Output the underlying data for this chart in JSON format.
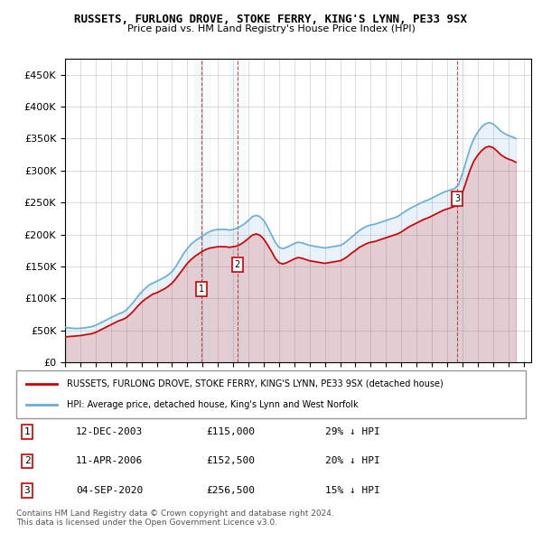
{
  "title": "RUSSETS, FURLONG DROVE, STOKE FERRY, KING'S LYNN, PE33 9SX",
  "subtitle": "Price paid vs. HM Land Registry's House Price Index (HPI)",
  "ylabel_ticks": [
    "£0",
    "£50K",
    "£100K",
    "£150K",
    "£200K",
    "£250K",
    "£300K",
    "£350K",
    "£400K",
    "£450K"
  ],
  "ytick_values": [
    0,
    50000,
    100000,
    150000,
    200000,
    250000,
    300000,
    350000,
    400000,
    450000
  ],
  "xlim_start": 1995.0,
  "xlim_end": 2025.5,
  "ylim": [
    0,
    475000
  ],
  "hpi_color": "#6baed6",
  "price_color": "#cc0000",
  "transactions": [
    {
      "date": 2003.95,
      "price": 115000,
      "label": "1"
    },
    {
      "date": 2006.28,
      "price": 152500,
      "label": "2"
    },
    {
      "date": 2020.67,
      "price": 256500,
      "label": "3"
    }
  ],
  "transaction_dates_detail": [
    "12-DEC-2003",
    "11-APR-2006",
    "04-SEP-2020"
  ],
  "transaction_prices_detail": [
    "£115,000",
    "£152,500",
    "£256,500"
  ],
  "transaction_hpi_detail": [
    "29% ↓ HPI",
    "20% ↓ HPI",
    "15% ↓ HPI"
  ],
  "legend_label_price": "RUSSETS, FURLONG DROVE, STOKE FERRY, KING'S LYNN, PE33 9SX (detached house)",
  "legend_label_hpi": "HPI: Average price, detached house, King's Lynn and West Norfolk",
  "footer": "Contains HM Land Registry data © Crown copyright and database right 2024.\nThis data is licensed under the Open Government Licence v3.0.",
  "hpi_data_x": [
    1995.0,
    1995.25,
    1995.5,
    1995.75,
    1996.0,
    1996.25,
    1996.5,
    1996.75,
    1997.0,
    1997.25,
    1997.5,
    1997.75,
    1998.0,
    1998.25,
    1998.5,
    1998.75,
    1999.0,
    1999.25,
    1999.5,
    1999.75,
    2000.0,
    2000.25,
    2000.5,
    2000.75,
    2001.0,
    2001.25,
    2001.5,
    2001.75,
    2002.0,
    2002.25,
    2002.5,
    2002.75,
    2003.0,
    2003.25,
    2003.5,
    2003.75,
    2004.0,
    2004.25,
    2004.5,
    2004.75,
    2005.0,
    2005.25,
    2005.5,
    2005.75,
    2006.0,
    2006.25,
    2006.5,
    2006.75,
    2007.0,
    2007.25,
    2007.5,
    2007.75,
    2008.0,
    2008.25,
    2008.5,
    2008.75,
    2009.0,
    2009.25,
    2009.5,
    2009.75,
    2010.0,
    2010.25,
    2010.5,
    2010.75,
    2011.0,
    2011.25,
    2011.5,
    2011.75,
    2012.0,
    2012.25,
    2012.5,
    2012.75,
    2013.0,
    2013.25,
    2013.5,
    2013.75,
    2014.0,
    2014.25,
    2014.5,
    2014.75,
    2015.0,
    2015.25,
    2015.5,
    2015.75,
    2016.0,
    2016.25,
    2016.5,
    2016.75,
    2017.0,
    2017.25,
    2017.5,
    2017.75,
    2018.0,
    2018.25,
    2018.5,
    2018.75,
    2019.0,
    2019.25,
    2019.5,
    2019.75,
    2020.0,
    2020.25,
    2020.5,
    2020.75,
    2021.0,
    2021.25,
    2021.5,
    2021.75,
    2022.0,
    2022.25,
    2022.5,
    2022.75,
    2023.0,
    2023.25,
    2023.5,
    2023.75,
    2024.0,
    2024.25,
    2024.5
  ],
  "hpi_data_y": [
    55000,
    54000,
    53500,
    53000,
    53500,
    54000,
    55000,
    56000,
    58000,
    61000,
    64000,
    67000,
    70000,
    73000,
    76000,
    78000,
    82000,
    88000,
    95000,
    103000,
    110000,
    116000,
    121000,
    124000,
    127000,
    130000,
    133000,
    137000,
    142000,
    150000,
    160000,
    170000,
    178000,
    185000,
    190000,
    194000,
    198000,
    202000,
    205000,
    207000,
    208000,
    208000,
    208000,
    207000,
    208000,
    210000,
    213000,
    217000,
    222000,
    228000,
    230000,
    228000,
    222000,
    212000,
    200000,
    188000,
    180000,
    178000,
    180000,
    183000,
    186000,
    188000,
    187000,
    185000,
    183000,
    182000,
    181000,
    180000,
    179000,
    180000,
    181000,
    182000,
    183000,
    186000,
    191000,
    196000,
    201000,
    206000,
    210000,
    213000,
    215000,
    216000,
    218000,
    220000,
    222000,
    224000,
    226000,
    228000,
    232000,
    236000,
    240000,
    243000,
    246000,
    249000,
    252000,
    254000,
    257000,
    260000,
    263000,
    266000,
    268000,
    270000,
    272000,
    278000,
    295000,
    315000,
    335000,
    350000,
    360000,
    368000,
    373000,
    375000,
    373000,
    368000,
    362000,
    358000,
    355000,
    353000,
    350000
  ],
  "price_data_x": [
    1995.0,
    1995.25,
    1995.5,
    1995.75,
    1996.0,
    1996.25,
    1996.5,
    1996.75,
    1997.0,
    1997.25,
    1997.5,
    1997.75,
    1998.0,
    1998.25,
    1998.5,
    1998.75,
    1999.0,
    1999.25,
    1999.5,
    1999.75,
    2000.0,
    2000.25,
    2000.5,
    2000.75,
    2001.0,
    2001.25,
    2001.5,
    2001.75,
    2002.0,
    2002.25,
    2002.5,
    2002.75,
    2003.0,
    2003.25,
    2003.5,
    2003.75,
    2004.0,
    2004.25,
    2004.5,
    2004.75,
    2005.0,
    2005.25,
    2005.5,
    2005.75,
    2006.0,
    2006.25,
    2006.5,
    2006.75,
    2007.0,
    2007.25,
    2007.5,
    2007.75,
    2008.0,
    2008.25,
    2008.5,
    2008.75,
    2009.0,
    2009.25,
    2009.5,
    2009.75,
    2010.0,
    2010.25,
    2010.5,
    2010.75,
    2011.0,
    2011.25,
    2011.5,
    2011.75,
    2012.0,
    2012.25,
    2012.5,
    2012.75,
    2013.0,
    2013.25,
    2013.5,
    2013.75,
    2014.0,
    2014.25,
    2014.5,
    2014.75,
    2015.0,
    2015.25,
    2015.5,
    2015.75,
    2016.0,
    2016.25,
    2016.5,
    2016.75,
    2017.0,
    2017.25,
    2017.5,
    2017.75,
    2018.0,
    2018.25,
    2018.5,
    2018.75,
    2019.0,
    2019.25,
    2019.5,
    2019.75,
    2020.0,
    2020.25,
    2020.5,
    2020.75,
    2021.0,
    2021.25,
    2021.5,
    2021.75,
    2022.0,
    2022.25,
    2022.5,
    2022.75,
    2023.0,
    2023.25,
    2023.5,
    2023.75,
    2024.0,
    2024.25,
    2024.5
  ],
  "price_data_y": [
    40000,
    40500,
    41000,
    41500,
    42000,
    43000,
    44000,
    45000,
    47000,
    50000,
    53000,
    56000,
    59000,
    62000,
    65000,
    67000,
    70000,
    75000,
    81000,
    88000,
    94000,
    99000,
    103000,
    107000,
    109000,
    112000,
    115000,
    119000,
    124000,
    131000,
    139000,
    147000,
    155000,
    161000,
    166000,
    170000,
    174000,
    177000,
    179000,
    180000,
    181000,
    181000,
    181000,
    180000,
    181000,
    182000,
    185000,
    189000,
    194000,
    199000,
    201000,
    199000,
    193000,
    184000,
    174000,
    163000,
    156000,
    154000,
    156000,
    159000,
    162000,
    164000,
    163000,
    161000,
    159000,
    158000,
    157000,
    156000,
    155000,
    156000,
    157000,
    158000,
    159000,
    162000,
    166000,
    171000,
    175000,
    180000,
    183000,
    186000,
    188000,
    189000,
    191000,
    193000,
    195000,
    197000,
    199000,
    201000,
    204000,
    208000,
    212000,
    215000,
    218000,
    221000,
    224000,
    226000,
    229000,
    232000,
    235000,
    238000,
    240000,
    242000,
    244000,
    249000,
    265000,
    283000,
    301000,
    315000,
    324000,
    331000,
    336000,
    338000,
    336000,
    331000,
    325000,
    321000,
    318000,
    316000,
    313000
  ]
}
